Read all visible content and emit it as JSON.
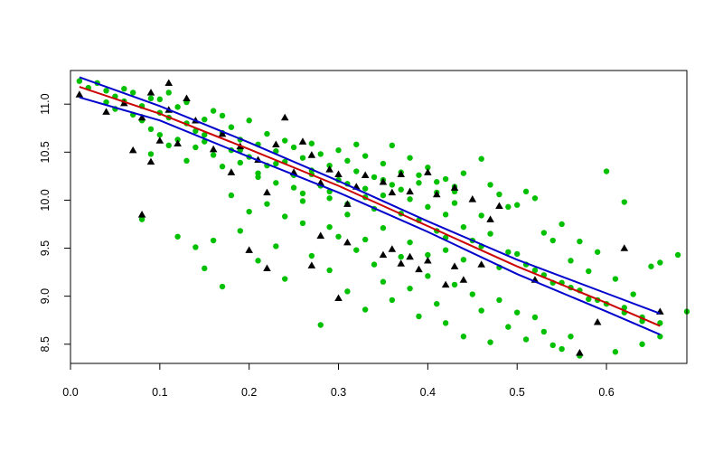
{
  "chart_data": {
    "type": "scatter",
    "title": "",
    "xlabel": "",
    "ylabel": "",
    "xlim": [
      0.0,
      0.69
    ],
    "ylim": [
      8.3,
      11.35
    ],
    "x_ticks": [
      {
        "value": 0.0,
        "label": "0.0"
      },
      {
        "value": 0.1,
        "label": "0.1"
      },
      {
        "value": 0.2,
        "label": "0.2"
      },
      {
        "value": 0.3,
        "label": "0.3"
      },
      {
        "value": 0.4,
        "label": "0.4"
      },
      {
        "value": 0.5,
        "label": "0.5"
      },
      {
        "value": 0.6,
        "label": "0.6"
      }
    ],
    "y_ticks": [
      {
        "value": 8.5,
        "label": "8.5"
      },
      {
        "value": 9.0,
        "label": "9.0"
      },
      {
        "value": 9.5,
        "label": "9.5"
      },
      {
        "value": 10.0,
        "label": "10.0"
      },
      {
        "value": 10.5,
        "label": "10.5"
      },
      {
        "value": 11.0,
        "label": "11.0"
      }
    ],
    "grid": false,
    "legend": "none",
    "series": [
      {
        "marker": "circle",
        "color": "#00c000",
        "points": [
          [
            0.01,
            11.24
          ],
          [
            0.02,
            11.17
          ],
          [
            0.03,
            11.22
          ],
          [
            0.04,
            11.14
          ],
          [
            0.04,
            11.02
          ],
          [
            0.05,
            11.08
          ],
          [
            0.05,
            10.95
          ],
          [
            0.06,
            11.16
          ],
          [
            0.06,
            11.03
          ],
          [
            0.07,
            10.89
          ],
          [
            0.07,
            11.12
          ],
          [
            0.08,
            10.98
          ],
          [
            0.08,
            10.83
          ],
          [
            0.09,
            11.06
          ],
          [
            0.09,
            10.74
          ],
          [
            0.1,
            11.05
          ],
          [
            0.1,
            10.91
          ],
          [
            0.1,
            10.68
          ],
          [
            0.11,
            11.12
          ],
          [
            0.11,
            10.86
          ],
          [
            0.12,
            10.97
          ],
          [
            0.12,
            10.63
          ],
          [
            0.13,
            10.8
          ],
          [
            0.13,
            11.02
          ],
          [
            0.14,
            10.72
          ],
          [
            0.14,
            10.55
          ],
          [
            0.15,
            10.84
          ],
          [
            0.15,
            10.61
          ],
          [
            0.16,
            10.93
          ],
          [
            0.16,
            10.47
          ],
          [
            0.17,
            10.7
          ],
          [
            0.17,
            10.88
          ],
          [
            0.18,
            10.52
          ],
          [
            0.18,
            10.76
          ],
          [
            0.19,
            10.39
          ],
          [
            0.19,
            10.63
          ],
          [
            0.2,
            10.83
          ],
          [
            0.2,
            10.45
          ],
          [
            0.21,
            10.58
          ],
          [
            0.21,
            10.28
          ],
          [
            0.22,
            10.69
          ],
          [
            0.22,
            10.36
          ],
          [
            0.23,
            10.51
          ],
          [
            0.23,
            10.18
          ],
          [
            0.24,
            10.62
          ],
          [
            0.24,
            10.4
          ],
          [
            0.25,
            10.26
          ],
          [
            0.25,
            10.55
          ],
          [
            0.26,
            10.07
          ],
          [
            0.26,
            10.44
          ],
          [
            0.27,
            10.31
          ],
          [
            0.27,
            10.59
          ],
          [
            0.28,
            10.15
          ],
          [
            0.28,
            10.48
          ],
          [
            0.29,
            10.36
          ],
          [
            0.29,
            10.02
          ],
          [
            0.3,
            10.52
          ],
          [
            0.3,
            10.21
          ],
          [
            0.31,
            10.41
          ],
          [
            0.31,
            9.96
          ],
          [
            0.32,
            10.3
          ],
          [
            0.32,
            10.58
          ],
          [
            0.33,
            10.12
          ],
          [
            0.33,
            10.46
          ],
          [
            0.34,
            10.24
          ],
          [
            0.34,
            9.91
          ],
          [
            0.35,
            10.38
          ],
          [
            0.35,
            10.05
          ],
          [
            0.36,
            10.16
          ],
          [
            0.36,
            10.57
          ],
          [
            0.37,
            9.86
          ],
          [
            0.37,
            10.29
          ],
          [
            0.38,
            10.01
          ],
          [
            0.38,
            10.44
          ],
          [
            0.39,
            9.79
          ],
          [
            0.39,
            10.18
          ],
          [
            0.4,
            10.34
          ],
          [
            0.4,
            9.93
          ],
          [
            0.41,
            10.08
          ],
          [
            0.41,
            9.68
          ],
          [
            0.42,
            10.22
          ],
          [
            0.42,
            9.85
          ],
          [
            0.43,
            9.97
          ],
          [
            0.43,
            10.14
          ],
          [
            0.44,
            9.72
          ],
          [
            0.44,
            10.28
          ],
          [
            0.45,
            9.58
          ],
          [
            0.46,
            10.43
          ],
          [
            0.46,
            9.84
          ],
          [
            0.47,
            9.65
          ],
          [
            0.48,
            10.06
          ],
          [
            0.49,
            9.46
          ],
          [
            0.5,
            9.95
          ],
          [
            0.51,
            9.33
          ],
          [
            0.52,
            10.02
          ],
          [
            0.53,
            9.22
          ],
          [
            0.54,
            9.58
          ],
          [
            0.55,
            9.14
          ],
          [
            0.56,
            9.37
          ],
          [
            0.57,
            9.06
          ],
          [
            0.58,
            9.26
          ],
          [
            0.59,
            8.96
          ],
          [
            0.6,
            10.3
          ],
          [
            0.61,
            9.18
          ],
          [
            0.62,
            8.88
          ],
          [
            0.63,
            9.02
          ],
          [
            0.64,
            8.78
          ],
          [
            0.65,
            9.31
          ],
          [
            0.66,
            8.72
          ],
          [
            0.68,
            9.43
          ],
          [
            0.69,
            8.84
          ],
          [
            0.08,
            9.8
          ],
          [
            0.12,
            9.62
          ],
          [
            0.14,
            9.51
          ],
          [
            0.15,
            9.29
          ],
          [
            0.16,
            9.58
          ],
          [
            0.17,
            9.1
          ],
          [
            0.19,
            9.68
          ],
          [
            0.21,
            9.37
          ],
          [
            0.23,
            9.52
          ],
          [
            0.24,
            9.18
          ],
          [
            0.26,
            9.76
          ],
          [
            0.27,
            9.42
          ],
          [
            0.28,
            8.7
          ],
          [
            0.29,
            9.27
          ],
          [
            0.3,
            9.62
          ],
          [
            0.31,
            9.05
          ],
          [
            0.32,
            9.48
          ],
          [
            0.33,
            8.86
          ],
          [
            0.34,
            9.33
          ],
          [
            0.35,
            9.15
          ],
          [
            0.36,
            8.96
          ],
          [
            0.37,
            9.41
          ],
          [
            0.38,
            9.08
          ],
          [
            0.39,
            8.79
          ],
          [
            0.4,
            9.21
          ],
          [
            0.41,
            8.92
          ],
          [
            0.42,
            9.48
          ],
          [
            0.42,
            8.72
          ],
          [
            0.43,
            9.12
          ],
          [
            0.44,
            8.58
          ],
          [
            0.45,
            9.02
          ],
          [
            0.46,
            8.85
          ],
          [
            0.47,
            8.52
          ],
          [
            0.48,
            8.96
          ],
          [
            0.49,
            8.68
          ],
          [
            0.5,
            8.83
          ],
          [
            0.51,
            8.55
          ],
          [
            0.52,
            8.78
          ],
          [
            0.53,
            8.63
          ],
          [
            0.54,
            8.49
          ],
          [
            0.55,
            8.45
          ],
          [
            0.56,
            8.58
          ],
          [
            0.57,
            8.38
          ],
          [
            0.58,
            8.26
          ],
          [
            0.61,
            8.42
          ],
          [
            0.64,
            8.5
          ],
          [
            0.66,
            8.58
          ],
          [
            0.18,
            10.05
          ],
          [
            0.2,
            9.88
          ],
          [
            0.22,
            9.96
          ],
          [
            0.24,
            9.83
          ],
          [
            0.26,
            9.99
          ],
          [
            0.29,
            9.72
          ],
          [
            0.31,
            9.85
          ],
          [
            0.33,
            9.59
          ],
          [
            0.35,
            9.71
          ],
          [
            0.38,
            9.56
          ],
          [
            0.4,
            9.43
          ],
          [
            0.42,
            9.61
          ],
          [
            0.44,
            9.38
          ],
          [
            0.46,
            9.52
          ],
          [
            0.48,
            9.3
          ],
          [
            0.5,
            9.44
          ],
          [
            0.52,
            9.27
          ],
          [
            0.54,
            9.14
          ],
          [
            0.56,
            9.09
          ],
          [
            0.58,
            8.97
          ],
          [
            0.6,
            8.92
          ],
          [
            0.62,
            8.83
          ],
          [
            0.64,
            8.74
          ],
          [
            0.09,
            10.48
          ],
          [
            0.11,
            10.57
          ],
          [
            0.13,
            10.41
          ],
          [
            0.15,
            10.68
          ],
          [
            0.17,
            10.35
          ],
          [
            0.19,
            10.52
          ],
          [
            0.21,
            10.24
          ],
          [
            0.23,
            10.38
          ],
          [
            0.25,
            10.13
          ],
          [
            0.27,
            10.27
          ],
          [
            0.29,
            10.09
          ],
          [
            0.31,
            10.17
          ],
          [
            0.33,
            10.03
          ],
          [
            0.35,
            10.21
          ],
          [
            0.37,
            10.11
          ],
          [
            0.39,
            10.26
          ],
          [
            0.41,
            10.19
          ],
          [
            0.43,
            10.09
          ],
          [
            0.47,
            10.16
          ],
          [
            0.49,
            9.93
          ],
          [
            0.51,
            10.09
          ],
          [
            0.53,
            9.66
          ],
          [
            0.55,
            9.75
          ],
          [
            0.57,
            9.57
          ],
          [
            0.59,
            9.46
          ],
          [
            0.62,
            9.98
          ],
          [
            0.66,
            9.35
          ]
        ]
      },
      {
        "marker": "triangle",
        "color": "#000000",
        "points": [
          [
            0.01,
            11.1
          ],
          [
            0.04,
            10.92
          ],
          [
            0.06,
            11.01
          ],
          [
            0.07,
            10.52
          ],
          [
            0.08,
            10.86
          ],
          [
            0.09,
            10.4
          ],
          [
            0.09,
            11.12
          ],
          [
            0.1,
            10.62
          ],
          [
            0.11,
            10.94
          ],
          [
            0.11,
            11.22
          ],
          [
            0.12,
            10.59
          ],
          [
            0.13,
            11.06
          ],
          [
            0.14,
            10.83
          ],
          [
            0.16,
            10.53
          ],
          [
            0.17,
            10.69
          ],
          [
            0.18,
            10.29
          ],
          [
            0.19,
            10.56
          ],
          [
            0.21,
            10.42
          ],
          [
            0.22,
            10.08
          ],
          [
            0.23,
            10.58
          ],
          [
            0.24,
            10.86
          ],
          [
            0.25,
            10.29
          ],
          [
            0.26,
            10.61
          ],
          [
            0.27,
            10.47
          ],
          [
            0.28,
            10.18
          ],
          [
            0.29,
            10.32
          ],
          [
            0.3,
            10.27
          ],
          [
            0.31,
            9.96
          ],
          [
            0.32,
            10.14
          ],
          [
            0.33,
            10.26
          ],
          [
            0.35,
            10.19
          ],
          [
            0.36,
            10.08
          ],
          [
            0.37,
            10.27
          ],
          [
            0.38,
            10.09
          ],
          [
            0.4,
            10.29
          ],
          [
            0.41,
            10.06
          ],
          [
            0.43,
            10.13
          ],
          [
            0.45,
            10.01
          ],
          [
            0.47,
            9.8
          ],
          [
            0.48,
            9.94
          ],
          [
            0.08,
            9.85
          ],
          [
            0.2,
            9.48
          ],
          [
            0.22,
            9.29
          ],
          [
            0.27,
            9.32
          ],
          [
            0.28,
            9.63
          ],
          [
            0.3,
            8.98
          ],
          [
            0.31,
            9.56
          ],
          [
            0.35,
            9.43
          ],
          [
            0.36,
            9.49
          ],
          [
            0.37,
            9.34
          ],
          [
            0.38,
            9.41
          ],
          [
            0.39,
            9.28
          ],
          [
            0.4,
            9.37
          ],
          [
            0.42,
            9.12
          ],
          [
            0.43,
            9.31
          ],
          [
            0.44,
            9.17
          ],
          [
            0.46,
            9.33
          ],
          [
            0.52,
            9.17
          ],
          [
            0.57,
            8.41
          ],
          [
            0.59,
            8.73
          ],
          [
            0.62,
            9.5
          ],
          [
            0.66,
            8.84
          ]
        ]
      },
      {
        "marker": "line",
        "color": "#cc0000",
        "points": [
          [
            0.01,
            11.18
          ],
          [
            0.1,
            10.9
          ],
          [
            0.2,
            10.53
          ],
          [
            0.3,
            10.15
          ],
          [
            0.4,
            9.73
          ],
          [
            0.5,
            9.31
          ],
          [
            0.6,
            8.93
          ],
          [
            0.66,
            8.69
          ]
        ]
      },
      {
        "marker": "line",
        "color": "#0000cc",
        "points": [
          [
            0.01,
            11.28
          ],
          [
            0.1,
            10.98
          ],
          [
            0.2,
            10.6
          ],
          [
            0.3,
            10.2
          ],
          [
            0.4,
            9.78
          ],
          [
            0.5,
            9.38
          ],
          [
            0.6,
            9.03
          ],
          [
            0.66,
            8.82
          ]
        ]
      },
      {
        "marker": "line",
        "color": "#0000cc",
        "points": [
          [
            0.01,
            11.07
          ],
          [
            0.1,
            10.83
          ],
          [
            0.2,
            10.45
          ],
          [
            0.3,
            10.08
          ],
          [
            0.4,
            9.67
          ],
          [
            0.5,
            9.23
          ],
          [
            0.6,
            8.84
          ],
          [
            0.66,
            8.6
          ]
        ]
      }
    ]
  }
}
